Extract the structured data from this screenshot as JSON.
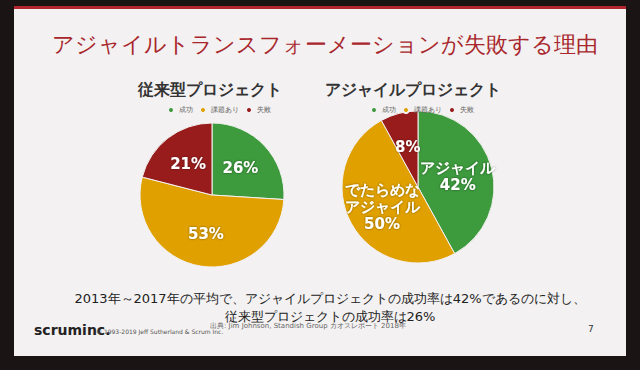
{
  "slide": {
    "title": "アジャイルトランスフォーメーションが失敗する理由",
    "caption": [
      "2013年～2017年の平均で、アジャイルプロジェクトの成功率は42%であるのに対し、",
      "従来型プロジェクトの成功率は26%"
    ],
    "source": "出典: Jim Johnson, Standish Group カオスレポート 2018年",
    "logo": "scruminc.",
    "copyright": "© 1993-2019 Jeff Sutherland & Scrum Inc.",
    "page": "7"
  },
  "chart_data": [
    {
      "type": "pie",
      "title": "従来型プロジェクト",
      "categories": [
        "成功",
        "課題あり",
        "失敗"
      ],
      "values": [
        26,
        53,
        21
      ],
      "value_labels": [
        "26%",
        "53%",
        "21%"
      ],
      "colors": [
        "#3d9a3d",
        "#e0a100",
        "#991c1c"
      ],
      "legend": "top",
      "data_labels": true
    },
    {
      "type": "pie",
      "title": "アジャイルプロジェクト",
      "categories": [
        "成功",
        "課題あり",
        "失敗"
      ],
      "values": [
        42,
        50,
        8
      ],
      "value_labels": [
        "アジャイル\n42%",
        "でたらめな\nアジャイル\n50%",
        "8%"
      ],
      "colors": [
        "#3d9a3d",
        "#e0a100",
        "#991c1c"
      ],
      "legend": "top",
      "data_labels": true
    }
  ]
}
